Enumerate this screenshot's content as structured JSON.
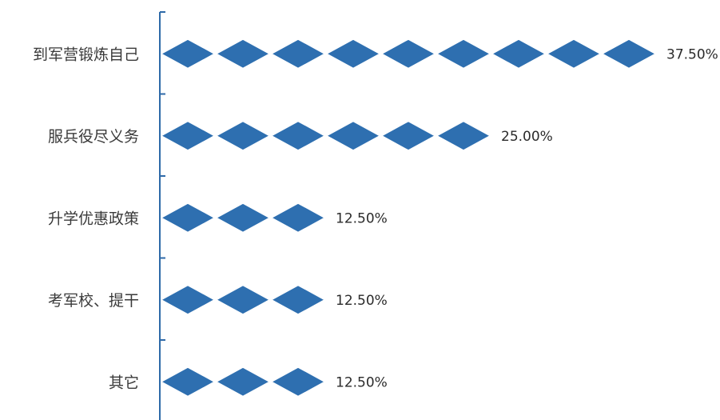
{
  "chart_data": {
    "type": "bar",
    "orientation": "horizontal",
    "marker": "diamond",
    "diamond_unit_percent": 4.1667,
    "categories": [
      "到军营锻炼自己",
      "服兵役尽义务",
      "升学优惠政策",
      "考军校、提干",
      "其它"
    ],
    "values": [
      37.5,
      25.0,
      12.5,
      12.5,
      12.5
    ],
    "value_labels": [
      "37.50%",
      "25.00%",
      "12.50%",
      "12.50%",
      "12.50%"
    ],
    "title": "",
    "xlabel": "",
    "ylabel": "",
    "grid": false,
    "legend": "none",
    "colors": {
      "marker": "#2e6fb0",
      "axis": "#2e6aa8"
    }
  }
}
